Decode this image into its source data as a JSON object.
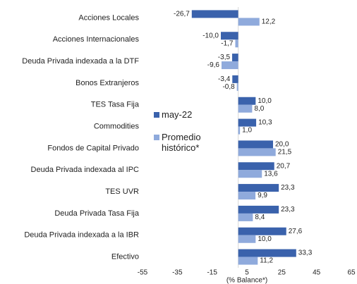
{
  "chart_data": {
    "type": "bar",
    "orientation": "horizontal",
    "categories": [
      "Acciones Locales",
      "Acciones Internacionales",
      "Deuda Privada indexada a la DTF",
      "Bonos Extranjeros",
      "TES Tasa Fija",
      "Commodities",
      "Fondos de Capital Privado",
      "Deuda Privada indexada al IPC",
      "TES UVR",
      "Deuda Privada Tasa Fija",
      "Deuda Privada indexada a la IBR",
      "Efectivo"
    ],
    "series": [
      {
        "name": "may-22",
        "color": "#3a62ac",
        "values": [
          -26.7,
          -10.0,
          -3.5,
          -3.4,
          10.0,
          10.3,
          20.0,
          20.7,
          23.3,
          23.3,
          27.6,
          33.3
        ],
        "value_labels": [
          "-26,7",
          "-10,0",
          "-3,5",
          "-3,4",
          "10,0",
          "10,3",
          "20,0",
          "20,7",
          "23,3",
          "23,3",
          "27,6",
          "33,3"
        ]
      },
      {
        "name": "Promedio histórico*",
        "color": "#8faadc",
        "values": [
          12.2,
          -1.7,
          -9.6,
          -0.8,
          8.0,
          1.0,
          21.5,
          13.6,
          9.9,
          8.4,
          10.0,
          11.2
        ],
        "value_labels": [
          "12,2",
          "-1,7",
          "-9,6",
          "-0,8",
          "8,0",
          "1,0",
          "21,5",
          "13,6",
          "9,9",
          "8,4",
          "10,0",
          "11,2"
        ]
      }
    ],
    "xlabel": "(% Balance*)",
    "xlim": [
      -55,
      65
    ],
    "xticks": [
      -55,
      -35,
      -15,
      5,
      25,
      45,
      65
    ]
  }
}
